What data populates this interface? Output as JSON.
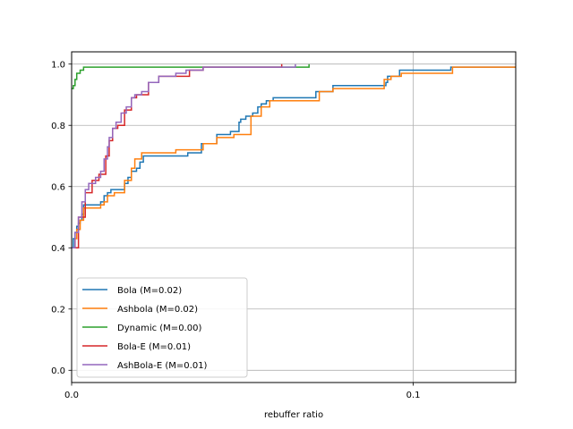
{
  "chart_data": {
    "type": "line",
    "subtype": "empirical-cdf-step",
    "title": "",
    "xlabel": "rebuffer ratio",
    "ylabel": "",
    "xlim": [
      0.0,
      0.13
    ],
    "ylim": [
      -0.04,
      1.04
    ],
    "xticks": [
      0.0,
      0.1
    ],
    "xtick_labels": [
      "0.0",
      "0.1"
    ],
    "yticks": [
      0.0,
      0.2,
      0.4,
      0.6,
      0.8,
      1.0
    ],
    "ytick_labels": [
      "0.0",
      "0.2",
      "0.4",
      "0.6",
      "0.8",
      "1.0"
    ],
    "grid": true,
    "legend_position": "lower-left",
    "series": [
      {
        "name": "Bola (M=0.02)",
        "color": "#1f77b4",
        "points": [
          [
            0.0,
            0.4
          ],
          [
            0.0005,
            0.43
          ],
          [
            0.001,
            0.45
          ],
          [
            0.0015,
            0.47
          ],
          [
            0.002,
            0.48
          ],
          [
            0.0025,
            0.49
          ],
          [
            0.003,
            0.51
          ],
          [
            0.0035,
            0.54
          ],
          [
            0.0085,
            0.55
          ],
          [
            0.0095,
            0.57
          ],
          [
            0.0105,
            0.58
          ],
          [
            0.0115,
            0.59
          ],
          [
            0.0155,
            0.61
          ],
          [
            0.0165,
            0.63
          ],
          [
            0.0175,
            0.65
          ],
          [
            0.019,
            0.66
          ],
          [
            0.02,
            0.68
          ],
          [
            0.021,
            0.7
          ],
          [
            0.034,
            0.71
          ],
          [
            0.038,
            0.74
          ],
          [
            0.0425,
            0.77
          ],
          [
            0.0465,
            0.78
          ],
          [
            0.049,
            0.81
          ],
          [
            0.0495,
            0.82
          ],
          [
            0.051,
            0.83
          ],
          [
            0.053,
            0.84
          ],
          [
            0.0545,
            0.86
          ],
          [
            0.0555,
            0.87
          ],
          [
            0.057,
            0.88
          ],
          [
            0.059,
            0.89
          ],
          [
            0.0715,
            0.91
          ],
          [
            0.0765,
            0.93
          ],
          [
            0.092,
            0.94
          ],
          [
            0.0925,
            0.96
          ],
          [
            0.096,
            0.98
          ],
          [
            0.111,
            0.99
          ],
          [
            0.13,
            0.99
          ]
        ]
      },
      {
        "name": "Ashbola (M=0.02)",
        "color": "#ff7f0e",
        "points": [
          [
            0.0,
            0.4
          ],
          [
            0.001,
            0.43
          ],
          [
            0.0015,
            0.46
          ],
          [
            0.0025,
            0.49
          ],
          [
            0.0035,
            0.53
          ],
          [
            0.0085,
            0.54
          ],
          [
            0.0095,
            0.55
          ],
          [
            0.0105,
            0.57
          ],
          [
            0.0125,
            0.58
          ],
          [
            0.0155,
            0.62
          ],
          [
            0.0175,
            0.66
          ],
          [
            0.0185,
            0.69
          ],
          [
            0.0205,
            0.71
          ],
          [
            0.0305,
            0.72
          ],
          [
            0.0385,
            0.74
          ],
          [
            0.0425,
            0.76
          ],
          [
            0.0475,
            0.77
          ],
          [
            0.0525,
            0.83
          ],
          [
            0.0555,
            0.86
          ],
          [
            0.058,
            0.88
          ],
          [
            0.0725,
            0.91
          ],
          [
            0.0765,
            0.92
          ],
          [
            0.0915,
            0.95
          ],
          [
            0.0935,
            0.96
          ],
          [
            0.0965,
            0.97
          ],
          [
            0.1115,
            0.99
          ],
          [
            0.13,
            0.99
          ]
        ]
      },
      {
        "name": "Dynamic (M=0.00)",
        "color": "#2ca02c",
        "points": [
          [
            0.0,
            0.92
          ],
          [
            0.0005,
            0.93
          ],
          [
            0.001,
            0.95
          ],
          [
            0.0015,
            0.97
          ],
          [
            0.0025,
            0.98
          ],
          [
            0.0035,
            0.99
          ],
          [
            0.0695,
            0.99
          ],
          [
            0.0695,
            1.0
          ]
        ]
      },
      {
        "name": "Bola-E (M=0.01)",
        "color": "#d62728",
        "points": [
          [
            0.0,
            0.4
          ],
          [
            0.002,
            0.5
          ],
          [
            0.004,
            0.58
          ],
          [
            0.006,
            0.62
          ],
          [
            0.008,
            0.64
          ],
          [
            0.01,
            0.7
          ],
          [
            0.011,
            0.75
          ],
          [
            0.012,
            0.79
          ],
          [
            0.0135,
            0.8
          ],
          [
            0.0155,
            0.85
          ],
          [
            0.0175,
            0.89
          ],
          [
            0.019,
            0.9
          ],
          [
            0.0225,
            0.94
          ],
          [
            0.0255,
            0.96
          ],
          [
            0.0345,
            0.98
          ],
          [
            0.0385,
            0.99
          ],
          [
            0.0615,
            0.99
          ],
          [
            0.0615,
            1.0
          ]
        ]
      },
      {
        "name": "AshBola-E (M=0.01)",
        "color": "#9467bd",
        "points": [
          [
            0.0,
            0.4
          ],
          [
            0.001,
            0.45
          ],
          [
            0.002,
            0.5
          ],
          [
            0.003,
            0.55
          ],
          [
            0.004,
            0.59
          ],
          [
            0.005,
            0.61
          ],
          [
            0.007,
            0.63
          ],
          [
            0.0085,
            0.65
          ],
          [
            0.0095,
            0.69
          ],
          [
            0.0105,
            0.73
          ],
          [
            0.011,
            0.76
          ],
          [
            0.012,
            0.79
          ],
          [
            0.013,
            0.81
          ],
          [
            0.0145,
            0.84
          ],
          [
            0.016,
            0.86
          ],
          [
            0.0175,
            0.89
          ],
          [
            0.0185,
            0.9
          ],
          [
            0.0205,
            0.91
          ],
          [
            0.0225,
            0.94
          ],
          [
            0.0255,
            0.96
          ],
          [
            0.0305,
            0.97
          ],
          [
            0.0335,
            0.98
          ],
          [
            0.0385,
            0.99
          ],
          [
            0.0655,
            0.99
          ],
          [
            0.0655,
            1.0
          ]
        ]
      }
    ]
  }
}
